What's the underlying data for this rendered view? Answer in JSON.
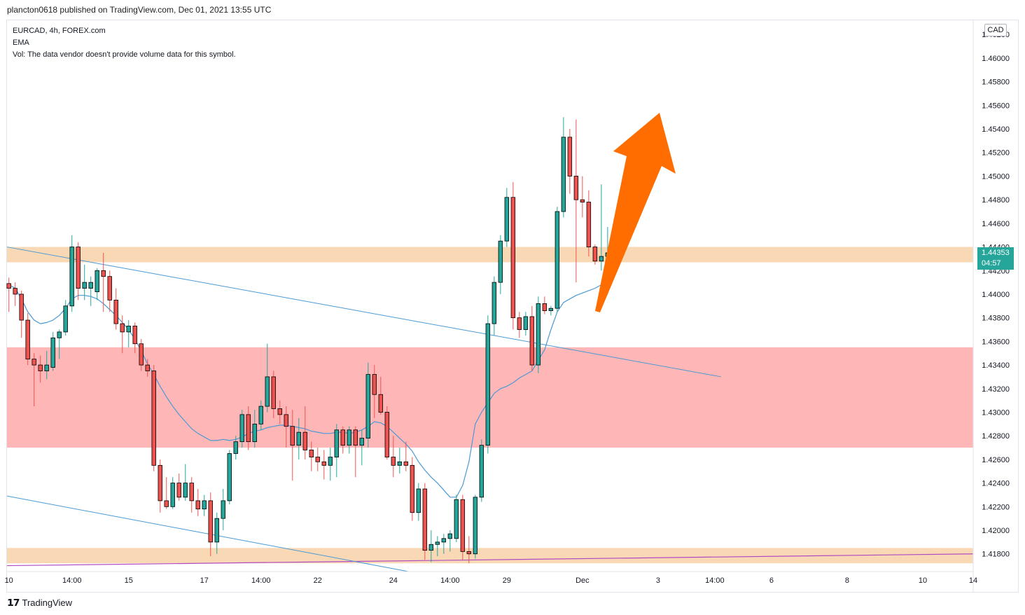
{
  "header": {
    "text": "plancton0618 published on TradingView.com, Dec 01, 2021 13:55 UTC"
  },
  "legend": {
    "symbol": "EURCAD, 4h, FOREX.com",
    "indicator": "EMA",
    "volume_note": "Vol: The data vendor doesn't provide volume data for this symbol."
  },
  "price_axis": {
    "currency": "CAD",
    "last_price": "1.44353",
    "countdown": "04:57"
  },
  "footer": {
    "logo_icon": "tradingview-logo-icon",
    "brand": "TradingView"
  },
  "colors": {
    "bull": "#26a69a",
    "bear": "#ef5350",
    "ema": "#4a9ad4",
    "trendline": "#4a9ad4",
    "support_line": "#b04cc2",
    "orange_zone": "#f9d8b6",
    "red_zone": "#ffb6b7",
    "arrow": "#ff6d00"
  },
  "chart_data": {
    "type": "candlestick",
    "symbol": "EURCAD",
    "timeframe": "4h",
    "ylim": [
      1.4165,
      1.4632
    ],
    "y_ticks": [
      1.418,
      1.42,
      1.422,
      1.424,
      1.426,
      1.428,
      1.43,
      1.432,
      1.434,
      1.436,
      1.438,
      1.44,
      1.442,
      1.444,
      1.446,
      1.448,
      1.45,
      1.452,
      1.454,
      1.456,
      1.458,
      1.46,
      1.462
    ],
    "y_tick_labels": [
      "1.41800",
      "1.42000",
      "1.42200",
      "1.42400",
      "1.42600",
      "1.42800",
      "1.43000",
      "1.43200",
      "1.43400",
      "1.43600",
      "1.43800",
      "1.44000",
      "1.44200",
      "1.44400",
      "1.44600",
      "1.44800",
      "1.45000",
      "1.45200",
      "1.45400",
      "1.45600",
      "1.45800",
      "1.46000",
      "1.46200"
    ],
    "x_tick_labels": [
      "10",
      "14:00",
      "15",
      "17",
      "14:00",
      "22",
      "24",
      "14:00",
      "29",
      "Dec",
      "3",
      "14:00",
      "6",
      "8",
      "10",
      "14"
    ],
    "x_tick_bar_index": [
      0,
      10,
      19,
      31,
      40,
      49,
      61,
      70,
      79,
      91,
      103,
      112,
      121,
      133,
      145,
      153
    ],
    "x_range": [
      -0.3,
      153
    ],
    "grid": false,
    "candles": [
      {
        "o": 1.4409,
        "h": 1.4414,
        "l": 1.4385,
        "c": 1.4405
      },
      {
        "o": 1.4405,
        "h": 1.441,
        "l": 1.439,
        "c": 1.44
      },
      {
        "o": 1.44,
        "h": 1.4403,
        "l": 1.4363,
        "c": 1.4378
      },
      {
        "o": 1.4378,
        "h": 1.4384,
        "l": 1.434,
        "c": 1.4345
      },
      {
        "o": 1.4345,
        "h": 1.435,
        "l": 1.4305,
        "c": 1.434
      },
      {
        "o": 1.434,
        "h": 1.4348,
        "l": 1.4325,
        "c": 1.4335
      },
      {
        "o": 1.4335,
        "h": 1.4352,
        "l": 1.4328,
        "c": 1.434
      },
      {
        "o": 1.4338,
        "h": 1.4368,
        "l": 1.4335,
        "c": 1.4363
      },
      {
        "o": 1.4363,
        "h": 1.437,
        "l": 1.4345,
        "c": 1.4368
      },
      {
        "o": 1.4368,
        "h": 1.4395,
        "l": 1.4365,
        "c": 1.439
      },
      {
        "o": 1.439,
        "h": 1.445,
        "l": 1.4385,
        "c": 1.444
      },
      {
        "o": 1.444,
        "h": 1.4444,
        "l": 1.4395,
        "c": 1.4405
      },
      {
        "o": 1.4405,
        "h": 1.4425,
        "l": 1.4395,
        "c": 1.441
      },
      {
        "o": 1.4405,
        "h": 1.4415,
        "l": 1.439,
        "c": 1.441
      },
      {
        "o": 1.4402,
        "h": 1.4422,
        "l": 1.4395,
        "c": 1.442
      },
      {
        "o": 1.442,
        "h": 1.4435,
        "l": 1.4385,
        "c": 1.4415
      },
      {
        "o": 1.4415,
        "h": 1.442,
        "l": 1.4385,
        "c": 1.4395
      },
      {
        "o": 1.4395,
        "h": 1.4405,
        "l": 1.437,
        "c": 1.4375
      },
      {
        "o": 1.4375,
        "h": 1.4382,
        "l": 1.435,
        "c": 1.4368
      },
      {
        "o": 1.4368,
        "h": 1.4378,
        "l": 1.4355,
        "c": 1.4373
      },
      {
        "o": 1.4373,
        "h": 1.4376,
        "l": 1.435,
        "c": 1.4358
      },
      {
        "o": 1.4358,
        "h": 1.4362,
        "l": 1.4335,
        "c": 1.434
      },
      {
        "o": 1.434,
        "h": 1.4345,
        "l": 1.433,
        "c": 1.4335
      },
      {
        "o": 1.4335,
        "h": 1.434,
        "l": 1.425,
        "c": 1.4255
      },
      {
        "o": 1.4255,
        "h": 1.426,
        "l": 1.4215,
        "c": 1.4225
      },
      {
        "o": 1.4225,
        "h": 1.4245,
        "l": 1.4218,
        "c": 1.422
      },
      {
        "o": 1.422,
        "h": 1.4245,
        "l": 1.4218,
        "c": 1.424
      },
      {
        "o": 1.424,
        "h": 1.4248,
        "l": 1.4225,
        "c": 1.4228
      },
      {
        "o": 1.4228,
        "h": 1.4256,
        "l": 1.4225,
        "c": 1.424
      },
      {
        "o": 1.424,
        "h": 1.4245,
        "l": 1.4215,
        "c": 1.4225
      },
      {
        "o": 1.4225,
        "h": 1.4235,
        "l": 1.4212,
        "c": 1.4218
      },
      {
        "o": 1.4218,
        "h": 1.423,
        "l": 1.4212,
        "c": 1.4225
      },
      {
        "o": 1.4225,
        "h": 1.4232,
        "l": 1.4178,
        "c": 1.419
      },
      {
        "o": 1.419,
        "h": 1.4215,
        "l": 1.418,
        "c": 1.421
      },
      {
        "o": 1.421,
        "h": 1.4235,
        "l": 1.42,
        "c": 1.4225
      },
      {
        "o": 1.4225,
        "h": 1.4268,
        "l": 1.4222,
        "c": 1.4265
      },
      {
        "o": 1.4265,
        "h": 1.428,
        "l": 1.426,
        "c": 1.4275
      },
      {
        "o": 1.4275,
        "h": 1.4302,
        "l": 1.427,
        "c": 1.4298
      },
      {
        "o": 1.4298,
        "h": 1.4305,
        "l": 1.4268,
        "c": 1.4275
      },
      {
        "o": 1.4275,
        "h": 1.4302,
        "l": 1.427,
        "c": 1.429
      },
      {
        "o": 1.429,
        "h": 1.431,
        "l": 1.4285,
        "c": 1.4305
      },
      {
        "o": 1.4305,
        "h": 1.4358,
        "l": 1.43,
        "c": 1.433
      },
      {
        "o": 1.433,
        "h": 1.4335,
        "l": 1.4295,
        "c": 1.4303
      },
      {
        "o": 1.4303,
        "h": 1.431,
        "l": 1.429,
        "c": 1.4298
      },
      {
        "o": 1.4298,
        "h": 1.4305,
        "l": 1.427,
        "c": 1.4288
      },
      {
        "o": 1.4288,
        "h": 1.4302,
        "l": 1.4242,
        "c": 1.4272
      },
      {
        "o": 1.4272,
        "h": 1.4295,
        "l": 1.426,
        "c": 1.4283
      },
      {
        "o": 1.4283,
        "h": 1.4305,
        "l": 1.426,
        "c": 1.4268
      },
      {
        "o": 1.4268,
        "h": 1.4275,
        "l": 1.425,
        "c": 1.4262
      },
      {
        "o": 1.4262,
        "h": 1.427,
        "l": 1.425,
        "c": 1.4258
      },
      {
        "o": 1.4258,
        "h": 1.4268,
        "l": 1.4243,
        "c": 1.4255
      },
      {
        "o": 1.4255,
        "h": 1.427,
        "l": 1.4242,
        "c": 1.4262
      },
      {
        "o": 1.4262,
        "h": 1.429,
        "l": 1.4245,
        "c": 1.4285
      },
      {
        "o": 1.4285,
        "h": 1.4288,
        "l": 1.4265,
        "c": 1.4272
      },
      {
        "o": 1.4272,
        "h": 1.4288,
        "l": 1.4265,
        "c": 1.4285
      },
      {
        "o": 1.4285,
        "h": 1.4288,
        "l": 1.4245,
        "c": 1.4272
      },
      {
        "o": 1.4272,
        "h": 1.4285,
        "l": 1.4255,
        "c": 1.4278
      },
      {
        "o": 1.4278,
        "h": 1.4342,
        "l": 1.427,
        "c": 1.4332
      },
      {
        "o": 1.4332,
        "h": 1.434,
        "l": 1.4295,
        "c": 1.4315
      },
      {
        "o": 1.4315,
        "h": 1.433,
        "l": 1.4298,
        "c": 1.43
      },
      {
        "o": 1.43,
        "h": 1.4305,
        "l": 1.426,
        "c": 1.4262
      },
      {
        "o": 1.4262,
        "h": 1.428,
        "l": 1.4245,
        "c": 1.4255
      },
      {
        "o": 1.4255,
        "h": 1.427,
        "l": 1.4248,
        "c": 1.4258
      },
      {
        "o": 1.4258,
        "h": 1.4275,
        "l": 1.425,
        "c": 1.4255
      },
      {
        "o": 1.4255,
        "h": 1.4262,
        "l": 1.4208,
        "c": 1.4215
      },
      {
        "o": 1.4215,
        "h": 1.424,
        "l": 1.4208,
        "c": 1.4235
      },
      {
        "o": 1.4235,
        "h": 1.424,
        "l": 1.4175,
        "c": 1.4183
      },
      {
        "o": 1.4183,
        "h": 1.42,
        "l": 1.4173,
        "c": 1.4188
      },
      {
        "o": 1.4188,
        "h": 1.4195,
        "l": 1.4178,
        "c": 1.419
      },
      {
        "o": 1.419,
        "h": 1.4197,
        "l": 1.418,
        "c": 1.4193
      },
      {
        "o": 1.4193,
        "h": 1.42,
        "l": 1.4182,
        "c": 1.4197
      },
      {
        "o": 1.4193,
        "h": 1.423,
        "l": 1.419,
        "c": 1.4226
      },
      {
        "o": 1.4226,
        "h": 1.423,
        "l": 1.4175,
        "c": 1.4182
      },
      {
        "o": 1.4182,
        "h": 1.4195,
        "l": 1.4172,
        "c": 1.418
      },
      {
        "o": 1.418,
        "h": 1.423,
        "l": 1.4176,
        "c": 1.4228
      },
      {
        "o": 1.4228,
        "h": 1.4277,
        "l": 1.4224,
        "c": 1.4272
      },
      {
        "o": 1.4272,
        "h": 1.4382,
        "l": 1.4265,
        "c": 1.4375
      },
      {
        "o": 1.4375,
        "h": 1.4415,
        "l": 1.4365,
        "c": 1.441
      },
      {
        "o": 1.441,
        "h": 1.445,
        "l": 1.44,
        "c": 1.4445
      },
      {
        "o": 1.4445,
        "h": 1.449,
        "l": 1.444,
        "c": 1.4482
      },
      {
        "o": 1.4482,
        "h": 1.4495,
        "l": 1.437,
        "c": 1.438
      },
      {
        "o": 1.438,
        "h": 1.4385,
        "l": 1.4363,
        "c": 1.437
      },
      {
        "o": 1.437,
        "h": 1.4385,
        "l": 1.4365,
        "c": 1.4381
      },
      {
        "o": 1.4381,
        "h": 1.439,
        "l": 1.4335,
        "c": 1.434
      },
      {
        "o": 1.434,
        "h": 1.4398,
        "l": 1.4333,
        "c": 1.4392
      },
      {
        "o": 1.4392,
        "h": 1.4398,
        "l": 1.4383,
        "c": 1.4386
      },
      {
        "o": 1.4386,
        "h": 1.439,
        "l": 1.4382,
        "c": 1.4388
      },
      {
        "o": 1.4388,
        "h": 1.4474,
        "l": 1.4385,
        "c": 1.447
      },
      {
        "o": 1.447,
        "h": 1.455,
        "l": 1.4465,
        "c": 1.4533
      },
      {
        "o": 1.4533,
        "h": 1.454,
        "l": 1.4485,
        "c": 1.45
      },
      {
        "o": 1.45,
        "h": 1.4548,
        "l": 1.441,
        "c": 1.448
      },
      {
        "o": 1.448,
        "h": 1.45,
        "l": 1.4465,
        "c": 1.4478
      },
      {
        "o": 1.4478,
        "h": 1.4488,
        "l": 1.4432,
        "c": 1.444
      },
      {
        "o": 1.444,
        "h": 1.4442,
        "l": 1.4425,
        "c": 1.4428
      },
      {
        "o": 1.4428,
        "h": 1.4493,
        "l": 1.442,
        "c": 1.4432
      },
      {
        "o": 1.4432,
        "h": 1.4457,
        "l": 1.442,
        "c": 1.4435
      }
    ],
    "ema": [
      1.4408,
      1.4405,
      1.4396,
      1.4385,
      1.4378,
      1.4375,
      1.4376,
      1.4378,
      1.4382,
      1.4388,
      1.4396,
      1.4399,
      1.4399,
      1.4398,
      1.4396,
      1.4392,
      1.4387,
      1.4382,
      1.4376,
      1.437,
      1.4362,
      1.4352,
      1.4341,
      1.4332,
      1.4322,
      1.4313,
      1.4305,
      1.4298,
      1.4292,
      1.4286,
      1.4282,
      1.4279,
      1.4276,
      1.4276,
      1.4277,
      1.4276,
      1.4277,
      1.4279,
      1.4282,
      1.4284,
      1.4285,
      1.4287,
      1.4288,
      1.4289,
      1.4289,
      1.4288,
      1.4287,
      1.4286,
      1.4284,
      1.4283,
      1.4282,
      1.4282,
      1.4283,
      1.4283,
      1.4282,
      1.4283,
      1.4285,
      1.4288,
      1.4292,
      1.4291,
      1.4288,
      1.4283,
      1.4278,
      1.4273,
      1.4267,
      1.4258,
      1.4251,
      1.4245,
      1.424,
      1.4234,
      1.4228,
      1.4228,
      1.4238,
      1.4258,
      1.429,
      1.43,
      1.4308,
      1.4316,
      1.432,
      1.4322,
      1.4325,
      1.4329,
      1.4332,
      1.4335,
      1.4344,
      1.4353,
      1.437,
      1.4385,
      1.4393,
      1.4396,
      1.4399,
      1.4401,
      1.4403,
      1.4405,
      1.4408,
      1.441
    ]
  }
}
